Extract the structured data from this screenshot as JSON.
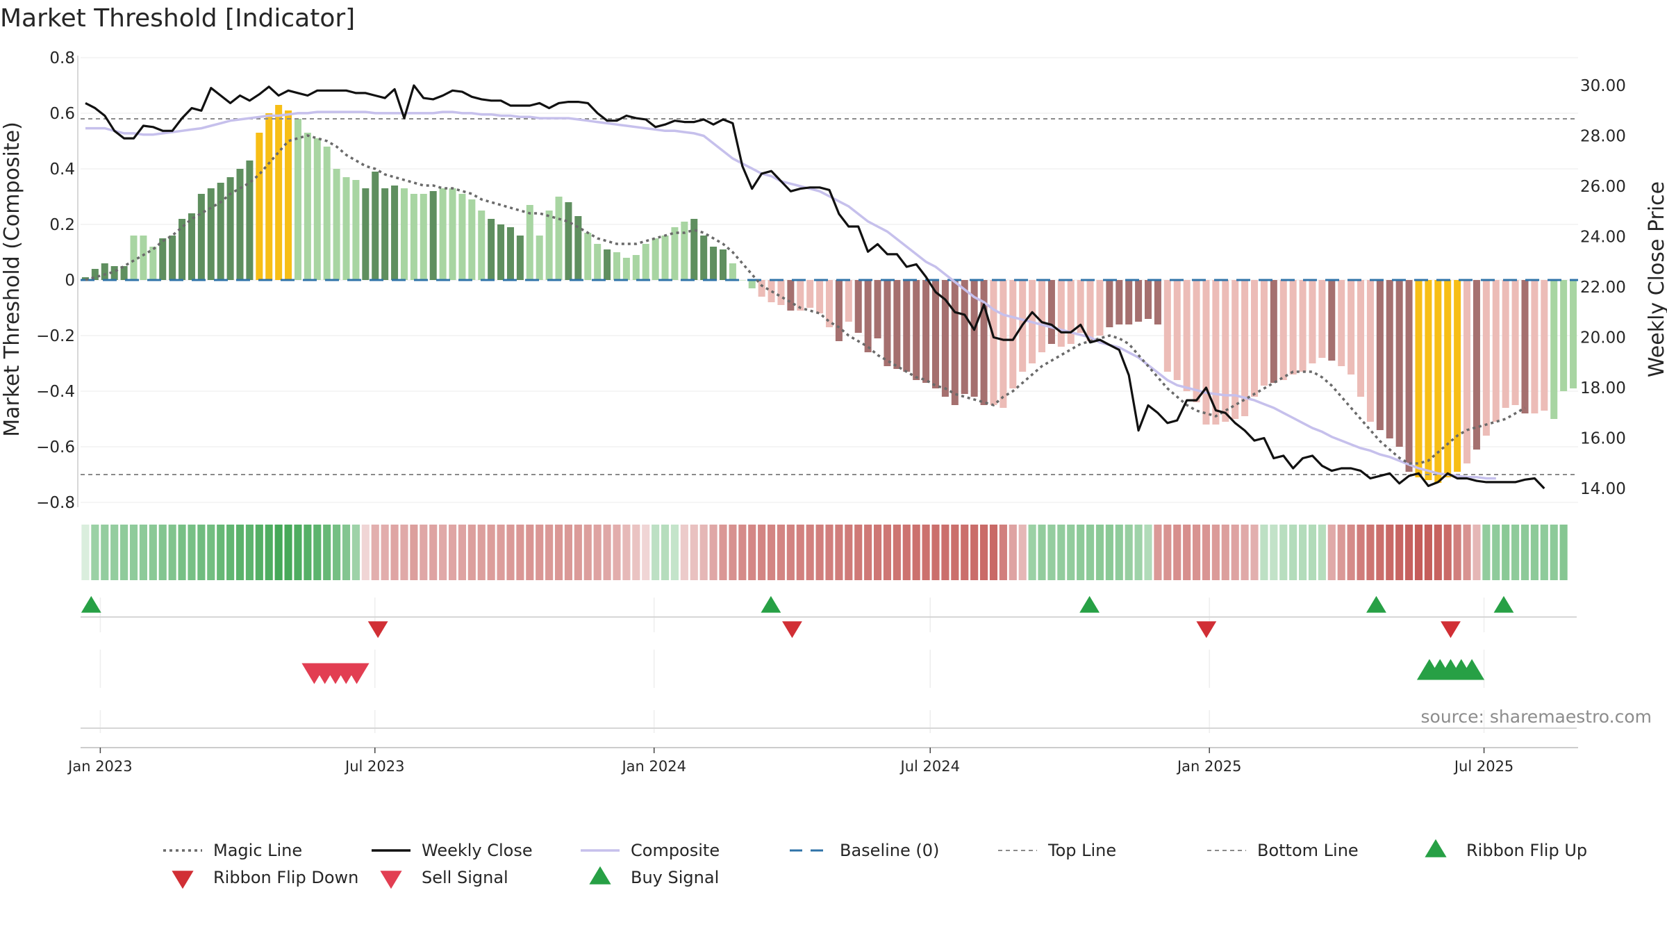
{
  "chart_data": {
    "type": "bar",
    "title": "Market Threshold [Indicator]",
    "ylabel": "Market Threshold (Composite)",
    "y2label": "Weekly Close Price",
    "ylim": [
      -0.82,
      0.82
    ],
    "y2lim": [
      13.0,
      31.0
    ],
    "yticks": [
      "0.8",
      "0.6",
      "0.4",
      "0.2",
      "0",
      "−0.2",
      "−0.4",
      "−0.6",
      "−0.8"
    ],
    "y2ticks": [
      "30.00",
      "28.00",
      "26.00",
      "24.00",
      "22.00",
      "20.00",
      "18.00",
      "16.00",
      "14.00"
    ],
    "x_start": "2022-12-19",
    "x_end": "2025-09-01",
    "x_ticks": [
      {
        "label": "Jan 2023",
        "date": "2023-01-01"
      },
      {
        "label": "Jul 2023",
        "date": "2023-07-01"
      },
      {
        "label": "Jan 2024",
        "date": "2024-01-01"
      },
      {
        "label": "Jul 2024",
        "date": "2024-07-01"
      },
      {
        "label": "Jan 2025",
        "date": "2025-01-01"
      },
      {
        "label": "Jul 2025",
        "date": "2025-07-01"
      }
    ],
    "top_line": 0.58,
    "bottom_line": -0.7,
    "grid": true,
    "legend_position": "bottom",
    "composite_bars": [
      0.01,
      0.04,
      0.06,
      0.05,
      0.05,
      0.16,
      0.16,
      0.12,
      0.15,
      0.16,
      0.22,
      0.24,
      0.31,
      0.33,
      0.35,
      0.37,
      0.4,
      0.43,
      0.53,
      0.6,
      0.63,
      0.61,
      0.58,
      0.53,
      0.51,
      0.48,
      0.4,
      0.37,
      0.36,
      0.33,
      0.39,
      0.33,
      0.34,
      0.33,
      0.31,
      0.31,
      0.32,
      0.33,
      0.33,
      0.31,
      0.29,
      0.25,
      0.22,
      0.2,
      0.19,
      0.16,
      0.27,
      0.16,
      0.25,
      0.3,
      0.28,
      0.23,
      0.17,
      0.13,
      0.11,
      0.1,
      0.08,
      0.09,
      0.13,
      0.15,
      0.16,
      0.19,
      0.21,
      0.22,
      0.16,
      0.12,
      0.11,
      0.06,
      0.0,
      -0.03,
      -0.06,
      -0.08,
      -0.09,
      -0.11,
      -0.11,
      -0.1,
      -0.12,
      -0.17,
      -0.22,
      -0.15,
      -0.19,
      -0.26,
      -0.21,
      -0.31,
      -0.32,
      -0.33,
      -0.36,
      -0.37,
      -0.39,
      -0.42,
      -0.45,
      -0.41,
      -0.42,
      -0.45,
      -0.45,
      -0.46,
      -0.39,
      -0.33,
      -0.3,
      -0.26,
      -0.23,
      -0.24,
      -0.23,
      -0.19,
      -0.22,
      -0.2,
      -0.17,
      -0.16,
      -0.16,
      -0.15,
      -0.14,
      -0.16,
      -0.33,
      -0.36,
      -0.4,
      -0.44,
      -0.52,
      -0.52,
      -0.51,
      -0.5,
      -0.49,
      -0.42,
      -0.38,
      -0.37,
      -0.36,
      -0.34,
      -0.33,
      -0.3,
      -0.28,
      -0.29,
      -0.31,
      -0.34,
      -0.42,
      -0.51,
      -0.54,
      -0.57,
      -0.6,
      -0.69,
      -0.71,
      -0.72,
      -0.73,
      -0.71,
      -0.69,
      -0.66,
      -0.61,
      -0.56,
      -0.51,
      -0.46,
      -0.45,
      -0.48,
      -0.48,
      -0.47,
      -0.5,
      -0.4,
      -0.39
    ],
    "bar_class": "ggggghhhggggggggggyyyyhhhhhhhgggghhhghhhhhgggghhhhgghhghhhhhhhhgggghhhllldlllldlddddddddddddddlllllldlllllddddddllllllllllldllllldllllddddyyyyyldlllldll",
    "magic_line": [
      0.0,
      0.01,
      0.02,
      0.03,
      0.05,
      0.07,
      0.09,
      0.11,
      0.14,
      0.16,
      0.19,
      0.22,
      0.24,
      0.26,
      0.28,
      0.31,
      0.33,
      0.35,
      0.38,
      0.42,
      0.46,
      0.5,
      0.51,
      0.52,
      0.51,
      0.5,
      0.48,
      0.45,
      0.43,
      0.41,
      0.4,
      0.38,
      0.37,
      0.36,
      0.35,
      0.34,
      0.34,
      0.33,
      0.33,
      0.32,
      0.31,
      0.29,
      0.28,
      0.27,
      0.26,
      0.25,
      0.24,
      0.24,
      0.23,
      0.22,
      0.21,
      0.19,
      0.17,
      0.15,
      0.14,
      0.13,
      0.13,
      0.13,
      0.14,
      0.15,
      0.16,
      0.17,
      0.17,
      0.18,
      0.17,
      0.15,
      0.13,
      0.1,
      0.06,
      0.02,
      -0.02,
      -0.04,
      -0.06,
      -0.08,
      -0.1,
      -0.11,
      -0.12,
      -0.15,
      -0.17,
      -0.2,
      -0.22,
      -0.24,
      -0.27,
      -0.29,
      -0.31,
      -0.33,
      -0.35,
      -0.36,
      -0.38,
      -0.39,
      -0.41,
      -0.42,
      -0.43,
      -0.44,
      -0.45,
      -0.42,
      -0.4,
      -0.37,
      -0.34,
      -0.31,
      -0.29,
      -0.27,
      -0.25,
      -0.23,
      -0.22,
      -0.21,
      -0.2,
      -0.21,
      -0.23,
      -0.27,
      -0.31,
      -0.35,
      -0.39,
      -0.42,
      -0.45,
      -0.47,
      -0.48,
      -0.49,
      -0.47,
      -0.45,
      -0.43,
      -0.41,
      -0.39,
      -0.37,
      -0.35,
      -0.33,
      -0.33,
      -0.33,
      -0.35,
      -0.38,
      -0.42,
      -0.46,
      -0.5,
      -0.54,
      -0.58,
      -0.61,
      -0.64,
      -0.66,
      -0.66,
      -0.65,
      -0.62,
      -0.59,
      -0.56,
      -0.54,
      -0.53,
      -0.52,
      -0.51,
      -0.5,
      -0.48,
      -0.46
    ],
    "weekly_close": [
      29.3,
      29.1,
      28.8,
      28.2,
      27.9,
      27.9,
      28.4,
      28.35,
      28.2,
      28.2,
      28.7,
      29.1,
      29.0,
      29.9,
      29.6,
      29.3,
      29.6,
      29.4,
      29.65,
      29.95,
      29.6,
      29.8,
      29.7,
      29.6,
      29.8,
      29.8,
      29.8,
      29.8,
      29.7,
      29.7,
      29.6,
      29.5,
      29.85,
      28.7,
      30.0,
      29.5,
      29.45,
      29.6,
      29.8,
      29.75,
      29.55,
      29.45,
      29.4,
      29.4,
      29.2,
      29.2,
      29.2,
      29.3,
      29.1,
      29.3,
      29.35,
      29.35,
      29.3,
      28.9,
      28.6,
      28.6,
      28.8,
      28.7,
      28.65,
      28.35,
      28.45,
      28.6,
      28.55,
      28.55,
      28.65,
      28.45,
      28.65,
      28.5,
      26.8,
      25.9,
      26.5,
      26.6,
      26.2,
      25.8,
      25.9,
      25.95,
      25.95,
      25.85,
      24.9,
      24.4,
      24.4,
      23.4,
      23.7,
      23.3,
      23.3,
      22.8,
      22.9,
      22.4,
      21.8,
      21.5,
      21.0,
      20.9,
      20.3,
      21.3,
      20.0,
      19.9,
      19.9,
      20.5,
      21.0,
      20.6,
      20.5,
      20.2,
      20.2,
      20.5,
      19.8,
      19.9,
      19.7,
      19.5,
      18.5,
      16.3,
      17.3,
      17.0,
      16.6,
      16.7,
      17.5,
      17.5,
      18.0,
      17.1,
      17.0,
      16.6,
      16.3,
      15.9,
      16.0,
      15.2,
      15.3,
      14.8,
      15.2,
      15.3,
      14.9,
      14.7,
      14.8,
      14.8,
      14.7,
      14.4,
      14.5,
      14.6,
      14.2,
      14.5,
      14.6,
      14.1,
      14.25,
      14.6,
      14.4,
      14.4,
      14.3,
      14.25,
      14.25,
      14.25,
      14.25,
      14.35,
      14.4,
      14.0
    ],
    "composite_line": [
      28.3,
      28.3,
      28.3,
      28.2,
      28.1,
      28.1,
      28.05,
      28.05,
      28.1,
      28.15,
      28.2,
      28.25,
      28.3,
      28.4,
      28.5,
      28.6,
      28.65,
      28.7,
      28.75,
      28.8,
      28.8,
      28.85,
      28.9,
      28.9,
      28.95,
      28.95,
      28.95,
      28.95,
      28.95,
      28.95,
      28.9,
      28.9,
      28.9,
      28.9,
      28.9,
      28.9,
      28.9,
      28.95,
      28.95,
      28.9,
      28.9,
      28.85,
      28.85,
      28.8,
      28.8,
      28.75,
      28.75,
      28.7,
      28.7,
      28.7,
      28.7,
      28.65,
      28.6,
      28.55,
      28.5,
      28.45,
      28.4,
      28.35,
      28.3,
      28.25,
      28.2,
      28.2,
      28.15,
      28.1,
      28.0,
      27.7,
      27.4,
      27.1,
      26.9,
      26.7,
      26.5,
      26.4,
      26.2,
      26.1,
      26.0,
      25.9,
      25.8,
      25.6,
      25.4,
      25.2,
      24.9,
      24.6,
      24.4,
      24.2,
      23.9,
      23.6,
      23.3,
      23.0,
      22.8,
      22.5,
      22.2,
      21.9,
      21.6,
      21.4,
      21.1,
      20.9,
      20.8,
      20.7,
      20.6,
      20.5,
      20.4,
      20.3,
      20.2,
      20.1,
      20.0,
      19.8,
      19.7,
      19.6,
      19.4,
      19.2,
      18.9,
      18.6,
      18.3,
      18.1,
      18.0,
      17.9,
      17.8,
      17.75,
      17.7,
      17.7,
      17.6,
      17.5,
      17.35,
      17.2,
      17.0,
      16.8,
      16.6,
      16.4,
      16.25,
      16.05,
      15.9,
      15.75,
      15.6,
      15.5,
      15.35,
      15.25,
      15.1,
      14.95,
      14.8,
      14.7,
      14.6,
      14.55,
      14.5,
      14.45,
      14.45,
      14.4,
      14.4
    ],
    "ribbon_values": [
      0.0,
      0.26,
      0.29,
      0.29,
      0.31,
      0.31,
      0.32,
      0.33,
      0.36,
      0.37,
      0.41,
      0.41,
      0.44,
      0.43,
      0.48,
      0.5,
      0.53,
      0.52,
      0.56,
      0.58,
      0.62,
      0.61,
      0.58,
      0.55,
      0.52,
      0.48,
      0.42,
      0.36,
      0.25,
      -0.05,
      -0.24,
      -0.25,
      -0.29,
      -0.27,
      -0.32,
      -0.28,
      -0.3,
      -0.27,
      -0.29,
      -0.3,
      -0.32,
      -0.32,
      -0.33,
      -0.33,
      -0.35,
      -0.36,
      -0.37,
      -0.36,
      -0.35,
      -0.36,
      -0.35,
      -0.34,
      -0.32,
      -0.3,
      -0.28,
      -0.25,
      -0.19,
      -0.14,
      -0.05,
      0.12,
      0.15,
      0.09,
      -0.1,
      -0.15,
      -0.2,
      -0.28,
      -0.36,
      -0.39,
      -0.42,
      -0.44,
      -0.45,
      -0.45,
      -0.45,
      -0.46,
      -0.47,
      -0.47,
      -0.48,
      -0.48,
      -0.49,
      -0.5,
      -0.51,
      -0.51,
      -0.52,
      -0.52,
      -0.53,
      -0.54,
      -0.55,
      -0.55,
      -0.56,
      -0.56,
      -0.56,
      -0.56,
      -0.57,
      -0.58,
      -0.59,
      -0.48,
      -0.3,
      -0.2,
      0.26,
      0.3,
      0.29,
      0.3,
      0.3,
      0.32,
      0.32,
      0.33,
      0.33,
      0.31,
      0.28,
      0.25,
      0.17,
      -0.35,
      -0.38,
      -0.4,
      -0.4,
      -0.38,
      -0.37,
      -0.34,
      -0.32,
      -0.3,
      -0.27,
      -0.24,
      0.12,
      0.1,
      0.14,
      0.16,
      0.16,
      0.17,
      0.15,
      -0.27,
      -0.35,
      -0.42,
      -0.49,
      -0.53,
      -0.56,
      -0.59,
      -0.61,
      -0.63,
      -0.65,
      -0.64,
      -0.62,
      -0.58,
      -0.48,
      -0.38,
      -0.2,
      0.3,
      0.31,
      0.33,
      0.31,
      0.32,
      0.32,
      0.31,
      0.32,
      0.35
    ],
    "ribbon_flip_up_dates": [
      "2022-12-26",
      "2024-03-18",
      "2024-10-14",
      "2025-04-21",
      "2025-07-14"
    ],
    "ribbon_flip_down_dates": [
      "2023-07-03",
      "2024-04-01",
      "2024-12-30",
      "2025-06-09"
    ],
    "sell_signal_dates": [
      "2023-05-22",
      "2023-05-29",
      "2023-06-05",
      "2023-06-12",
      "2023-06-19"
    ],
    "buy_signal_dates": [
      "2025-05-26",
      "2025-06-02",
      "2025-06-09",
      "2025-06-16",
      "2025-06-23"
    ],
    "legend": [
      "Magic Line",
      "Weekly Close",
      "Composite",
      "Baseline (0)",
      "Top Line",
      "Bottom Line",
      "Ribbon Flip Up",
      "Ribbon Flip Down",
      "Sell Signal",
      "Buy Signal"
    ],
    "source": "source: sharemaestro.com",
    "colors": {
      "bull_dark": "#5f8f5f",
      "bull_light": "#a8d5a2",
      "bear_dark": "#a5706f",
      "bear_light": "#ecbcb7",
      "extreme": "#f7be16",
      "magic": "#6a6a6a",
      "close": "#111111",
      "composite": "#c6c0ec",
      "baseline": "#2f73a8",
      "threshold": "#8a8a8a",
      "buy": "#27a045",
      "sell": "#e23e52",
      "flip_down": "#d12f35",
      "ribbon_pos": "#2f9e44",
      "ribbon_neg": "#c0504d"
    }
  }
}
